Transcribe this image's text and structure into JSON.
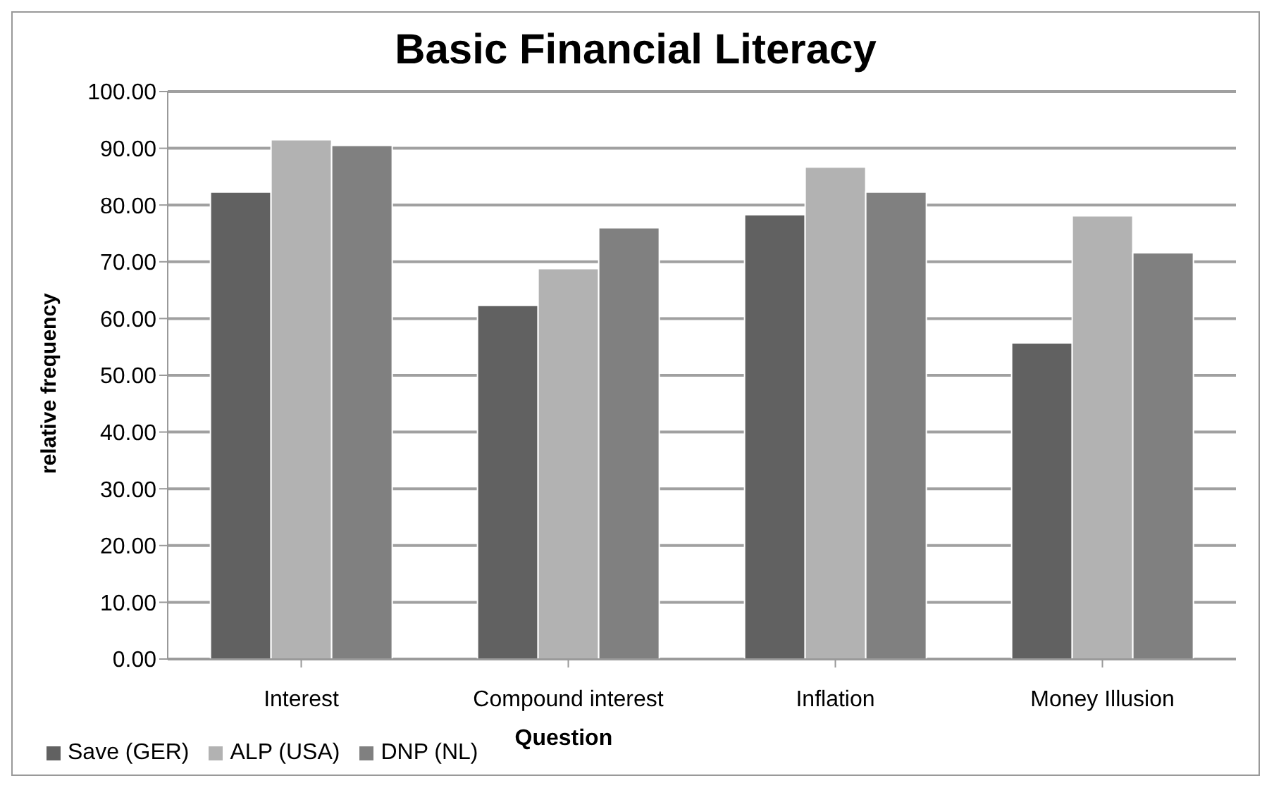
{
  "chart_data": {
    "type": "bar",
    "title": "Basic Financial Literacy",
    "xlabel": "Question",
    "ylabel": "relative frequency",
    "categories": [
      "Interest",
      "Compound interest",
      "Inflation",
      "Money Illusion"
    ],
    "series": [
      {
        "name": "Save (GER)",
        "color": "#616161",
        "values": [
          82.3,
          62.3,
          78.3,
          55.7
        ]
      },
      {
        "name": "ALP (USA)",
        "color": "#b2b2b2",
        "values": [
          91.5,
          68.8,
          86.7,
          78.1
        ]
      },
      {
        "name": "DNP (NL)",
        "color": "#808080",
        "values": [
          90.5,
          76.0,
          82.3,
          71.6
        ]
      }
    ],
    "ylim": [
      0,
      100
    ],
    "yticks": [
      {
        "value": 0,
        "label": "0.00"
      },
      {
        "value": 10,
        "label": "10.00"
      },
      {
        "value": 20,
        "label": "20.00"
      },
      {
        "value": 30,
        "label": "30.00"
      },
      {
        "value": 40,
        "label": "40.00"
      },
      {
        "value": 50,
        "label": "50.00"
      },
      {
        "value": 60,
        "label": "60.00"
      },
      {
        "value": 70,
        "label": "70.00"
      },
      {
        "value": 80,
        "label": "80.00"
      },
      {
        "value": 90,
        "label": "90.00"
      },
      {
        "value": 100,
        "label": "100.00"
      }
    ],
    "grid": "y",
    "legend": "bottom"
  }
}
